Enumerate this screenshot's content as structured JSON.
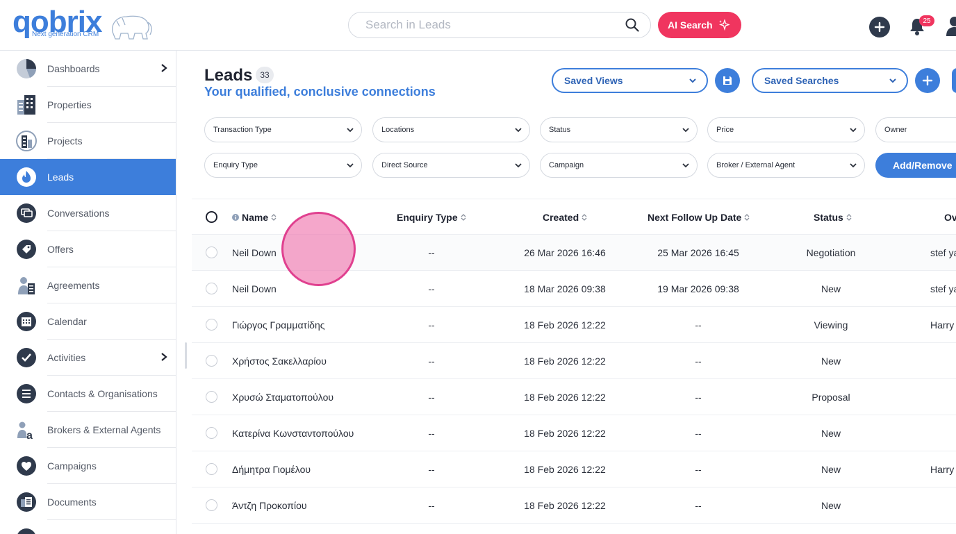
{
  "app": {
    "logo_text": "qobrix",
    "logo_subtitle": "Next generation CRM"
  },
  "header": {
    "search_placeholder": "Search in Leads",
    "ai_search_label": "AI Search",
    "notifications_count": "25"
  },
  "sidebar": {
    "items": [
      {
        "label": "Dashboards",
        "icon": "pie-chart-icon",
        "has_children": true
      },
      {
        "label": "Properties",
        "icon": "building-icon"
      },
      {
        "label": "Projects",
        "icon": "project-icon"
      },
      {
        "label": "Leads",
        "icon": "fire-icon",
        "active": true
      },
      {
        "label": "Conversations",
        "icon": "chat-icon"
      },
      {
        "label": "Offers",
        "icon": "tag-icon"
      },
      {
        "label": "Agreements",
        "icon": "agreement-icon"
      },
      {
        "label": "Calendar",
        "icon": "calendar-icon"
      },
      {
        "label": "Activities",
        "icon": "check-icon",
        "has_children": true
      },
      {
        "label": "Contacts & Organisations",
        "icon": "list-icon"
      },
      {
        "label": "Brokers & External Agents",
        "icon": "broker-icon"
      },
      {
        "label": "Campaigns",
        "icon": "heart-icon"
      },
      {
        "label": "Documents",
        "icon": "document-icon"
      }
    ]
  },
  "page": {
    "title": "Leads",
    "count": "33",
    "subtitle": "Your qualified, conclusive connections",
    "saved_views_label": "Saved Views",
    "saved_searches_label": "Saved Searches",
    "add_remove_label": "Add/Remove"
  },
  "filters": {
    "row1": [
      "Transaction Type",
      "Locations",
      "Status",
      "Price",
      "Owner"
    ],
    "row2": [
      "Enquiry Type",
      "Direct Source",
      "Campaign",
      "Broker / External Agent"
    ]
  },
  "table": {
    "columns": {
      "name": "Name",
      "enquiry_type": "Enquiry Type",
      "created": "Created",
      "next_follow_up": "Next Follow Up Date",
      "status": "Status",
      "owner": "Ov"
    },
    "rows": [
      {
        "name": "Neil Down",
        "enquiry_type": "--",
        "created": "26 Mar 2026 16:46",
        "next_follow_up": "25 Mar 2026 16:45",
        "status": "Negotiation",
        "owner": "stef ya"
      },
      {
        "name": "Neil Down",
        "enquiry_type": "--",
        "created": "18 Mar 2026 09:38",
        "next_follow_up": "19 Mar 2026 09:38",
        "status": "New",
        "owner": "stef ya"
      },
      {
        "name": "Γιώργος Γραμματίδης",
        "enquiry_type": "--",
        "created": "18 Feb 2026 12:22",
        "next_follow_up": "--",
        "status": "Viewing",
        "owner": "Harry"
      },
      {
        "name": "Χρήστος Σακελλαρίου",
        "enquiry_type": "--",
        "created": "18 Feb 2026 12:22",
        "next_follow_up": "--",
        "status": "New",
        "owner": ""
      },
      {
        "name": "Χρυσώ Σταματοπούλου",
        "enquiry_type": "--",
        "created": "18 Feb 2026 12:22",
        "next_follow_up": "--",
        "status": "Proposal",
        "owner": ""
      },
      {
        "name": "Κατερίνα Κωνσταντοπούλου",
        "enquiry_type": "--",
        "created": "18 Feb 2026 12:22",
        "next_follow_up": "--",
        "status": "New",
        "owner": ""
      },
      {
        "name": "Δήμητρα Γιομέλου",
        "enquiry_type": "--",
        "created": "18 Feb 2026 12:22",
        "next_follow_up": "--",
        "status": "New",
        "owner": "Harry"
      },
      {
        "name": "Άντζη Προκοπίου",
        "enquiry_type": "--",
        "created": "18 Feb 2026 12:22",
        "next_follow_up": "--",
        "status": "New",
        "owner": ""
      }
    ]
  },
  "colors": {
    "primary": "#3d7edb",
    "accent": "#f0355f",
    "dark": "#2f3a4c"
  }
}
